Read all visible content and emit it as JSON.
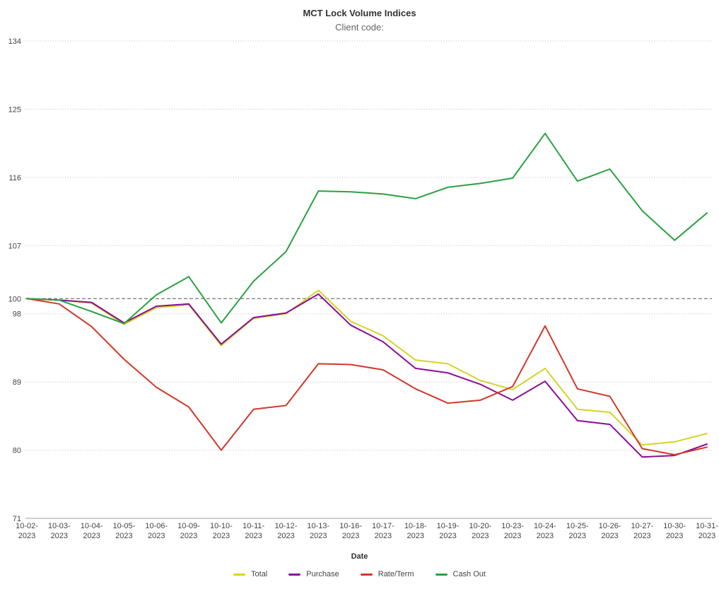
{
  "chart": {
    "title": "MCT Lock Volume Indices",
    "subtitle": "Client code:",
    "x_axis_title": "Date"
  },
  "chart_data": {
    "type": "line",
    "title": "MCT Lock Volume Indices",
    "subtitle": "Client code:",
    "xlabel": "Date",
    "ylabel": "",
    "ylim": [
      71,
      134
    ],
    "y_ticks": [
      71,
      80,
      89,
      98,
      107,
      116,
      125,
      134
    ],
    "reference_line": {
      "value": 100,
      "style": "dashed"
    },
    "grid": "horizontal-dotted",
    "legend_position": "bottom",
    "categories": [
      "10-02-2023",
      "10-03-2023",
      "10-04-2023",
      "10-05-2023",
      "10-06-2023",
      "10-09-2023",
      "10-10-2023",
      "10-11-2023",
      "10-12-2023",
      "10-13-2023",
      "10-16-2023",
      "10-17-2023",
      "10-18-2023",
      "10-19-2023",
      "10-20-2023",
      "10-23-2023",
      "10-24-2023",
      "10-25-2023",
      "10-26-2023",
      "10-27-2023",
      "10-30-2023",
      "10-31-2023"
    ],
    "series": [
      {
        "name": "Total",
        "color": "#d4d429",
        "values": [
          100,
          99.8,
          99.4,
          96.6,
          98.8,
          99.2,
          93.8,
          97.4,
          98.0,
          101.1,
          97.0,
          95.1,
          91.9,
          91.4,
          89.2,
          88.0,
          90.8,
          85.4,
          85.0,
          80.7,
          81.1,
          82.2
        ]
      },
      {
        "name": "Purchase",
        "color": "#8a0d97",
        "values": [
          100,
          99.8,
          99.5,
          96.8,
          99.0,
          99.3,
          94.0,
          97.5,
          98.1,
          100.6,
          96.5,
          94.3,
          90.8,
          90.2,
          88.7,
          86.6,
          89.1,
          83.9,
          83.4,
          79.1,
          79.3,
          80.8
        ]
      },
      {
        "name": "Rate/Term",
        "color": "#d2382a",
        "values": [
          100,
          99.3,
          96.3,
          92.0,
          88.3,
          85.7,
          80.0,
          85.4,
          85.9,
          91.4,
          91.3,
          90.6,
          88.1,
          86.2,
          86.6,
          88.4,
          96.4,
          88.1,
          87.1,
          80.2,
          79.4,
          80.4
        ]
      },
      {
        "name": "Cash Out",
        "color": "#2ba143",
        "values": [
          100,
          99.8,
          98.3,
          96.7,
          100.5,
          102.9,
          96.8,
          102.3,
          106.2,
          114.2,
          114.1,
          113.8,
          113.2,
          114.7,
          115.2,
          115.9,
          121.8,
          115.5,
          117.1,
          111.6,
          107.7,
          111.3
        ]
      }
    ],
    "colors": {
      "grid_dotted": "#bdbdbd",
      "reference_dashed": "#555555",
      "axis_baseline": "#9e9e9e",
      "tick_label": "#444444"
    }
  }
}
